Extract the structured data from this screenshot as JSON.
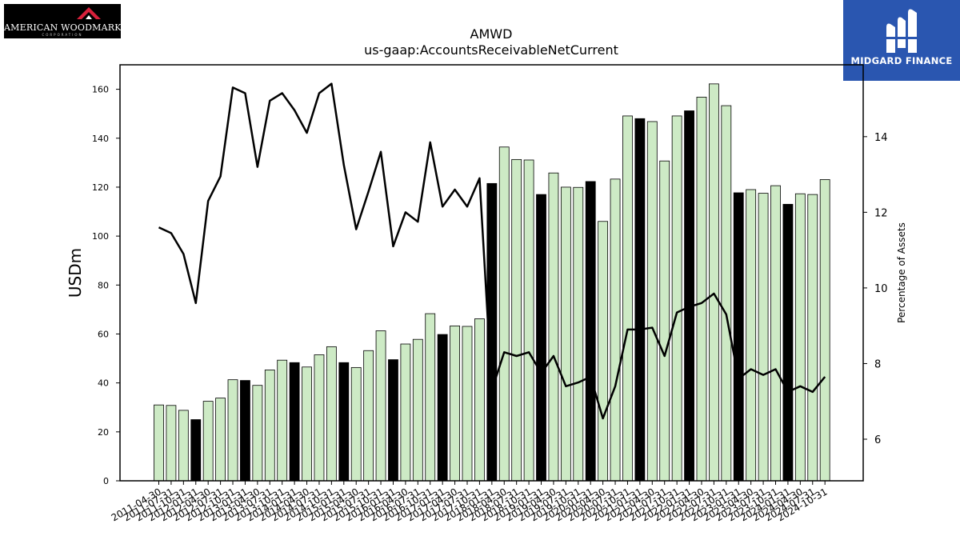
{
  "logos": {
    "left_brand": "AMERICAN WOODMARK",
    "left_sub": "CORPORATION",
    "right_brand": "MIDGARD FINANCE"
  },
  "colors": {
    "bar_light": "#cdeac5",
    "bar_dark": "#000000",
    "line": "#000000",
    "logo_right_bg": "#2a56b0"
  },
  "chart_data": {
    "type": "bar",
    "title": "AMWD",
    "subtitle": "us-gaap:AccountsReceivableNetCurrent",
    "ylabel": "USDm",
    "y2label": "Percentage of Assets",
    "ylim": [
      0,
      170
    ],
    "y2lim": [
      4.9,
      15.9
    ],
    "yticks": [
      0,
      20,
      40,
      60,
      80,
      100,
      120,
      140,
      160
    ],
    "y2ticks": [
      6,
      8,
      10,
      12,
      14
    ],
    "grid": false,
    "categories": [
      "2011-04-30",
      "2011-07-31",
      "2011-10-31",
      "2012-01-31",
      "2012-04-30",
      "2012-07-31",
      "2012-10-31",
      "2013-01-31",
      "2013-04-30",
      "2013-07-31",
      "2013-10-31",
      "2014-01-31",
      "2014-04-30",
      "2014-07-31",
      "2014-10-31",
      "2015-01-31",
      "2015-04-30",
      "2015-07-31",
      "2015-10-31",
      "2016-01-31",
      "2016-04-30",
      "2016-07-31",
      "2016-10-31",
      "2017-01-31",
      "2017-04-30",
      "2017-07-31",
      "2017-10-31",
      "2018-01-31",
      "2018-04-30",
      "2018-07-31",
      "2018-10-31",
      "2019-01-31",
      "2019-04-30",
      "2019-07-31",
      "2019-10-31",
      "2020-01-31",
      "2020-04-30",
      "2020-07-31",
      "2020-10-31",
      "2021-01-31",
      "2021-04-30",
      "2021-07-31",
      "2021-10-31",
      "2022-01-31",
      "2022-04-30",
      "2022-07-31",
      "2022-10-31",
      "2023-01-31",
      "2023-04-30",
      "2023-07-31",
      "2023-10-31",
      "2024-01-31",
      "2024-04-30",
      "2024-07-31",
      "2024-10-31"
    ],
    "series": [
      {
        "kind": "bar",
        "values": [
          31,
          30.8,
          28.8,
          25,
          32.5,
          33.8,
          41.3,
          41,
          39,
          45.3,
          49.3,
          48.3,
          46.5,
          51.5,
          54.8,
          48.3,
          46.3,
          53.2,
          61.3,
          49.5,
          55.9,
          57.8,
          68.3,
          59.8,
          63.3,
          63.1,
          66.2,
          121.5,
          136.4,
          131.3,
          131.1,
          117,
          125.8,
          120,
          119.9,
          122.3,
          106,
          123.3,
          149.1,
          148,
          146.8,
          130.7,
          149.1,
          151.2,
          156.8,
          162.2,
          153.3,
          117.7,
          119,
          117.5,
          120.6,
          113,
          117.3,
          117,
          123.1
        ],
        "highlight": [
          false,
          false,
          false,
          true,
          false,
          false,
          false,
          true,
          false,
          false,
          false,
          true,
          false,
          false,
          false,
          true,
          false,
          false,
          false,
          true,
          false,
          false,
          false,
          true,
          false,
          false,
          false,
          true,
          false,
          false,
          false,
          true,
          false,
          false,
          false,
          true,
          false,
          false,
          false,
          true,
          false,
          false,
          false,
          true,
          false,
          false,
          false,
          true,
          false,
          false,
          false,
          true,
          false,
          false,
          false
        ]
      },
      {
        "kind": "line",
        "axis": "right",
        "values": [
          11.6,
          11.45,
          10.9,
          9.6,
          12.3,
          12.95,
          15.3,
          15.15,
          13.2,
          14.95,
          15.15,
          14.7,
          14.1,
          15.15,
          15.4,
          13.25,
          11.55,
          12.55,
          13.6,
          11.1,
          12,
          11.75,
          13.85,
          12.15,
          12.6,
          12.15,
          12.9,
          7.3,
          8.3,
          8.2,
          8.3,
          7.75,
          8.2,
          7.4,
          7.5,
          7.65,
          6.55,
          7.4,
          8.9,
          8.9,
          8.95,
          8.2,
          9.35,
          9.5,
          9.6,
          9.85,
          9.3,
          7.6,
          7.85,
          7.7,
          7.85,
          7.25,
          7.4,
          7.25,
          7.65
        ]
      }
    ]
  }
}
